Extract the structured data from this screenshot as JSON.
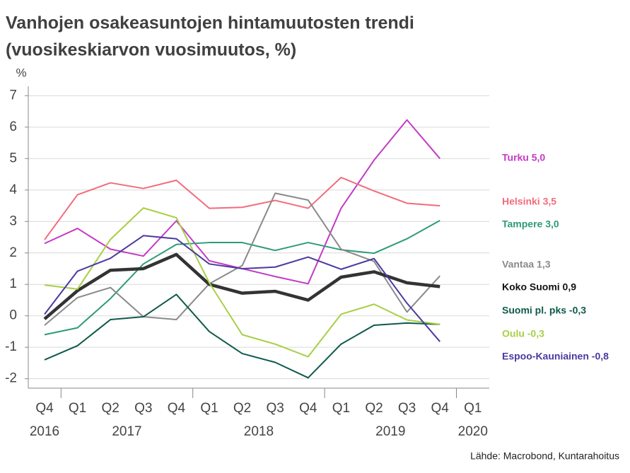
{
  "chart_data": {
    "type": "line",
    "title": "Vanhojen osakeasuntojen hintamuutosten trendi",
    "subtitle": "(vuosikeskiarvon vuosimuutos, %)",
    "y_label": "%",
    "source": "Lähde: Macrobond, Kuntarahoitus",
    "categories": [
      "Q4",
      "Q1",
      "Q2",
      "Q3",
      "Q4",
      "Q1",
      "Q2",
      "Q3",
      "Q4",
      "Q1",
      "Q2",
      "Q3",
      "Q4",
      "Q1"
    ],
    "year_groups": [
      {
        "label": "2016",
        "start": 0,
        "end": 0
      },
      {
        "label": "2017",
        "start": 1,
        "end": 4
      },
      {
        "label": "2018",
        "start": 5,
        "end": 8
      },
      {
        "label": "2019",
        "start": 9,
        "end": 12
      },
      {
        "label": "2020",
        "start": 13,
        "end": 13
      }
    ],
    "ylim": [
      -2.3,
      7.3
    ],
    "yticks": [
      -2,
      -1,
      0,
      1,
      2,
      3,
      4,
      5,
      6,
      7
    ],
    "grid": true,
    "series": [
      {
        "name": "Turku 5,0",
        "color": "#c23bc4",
        "values": [
          2.3,
          2.78,
          2.12,
          1.9,
          3.02,
          1.75,
          1.5,
          1.25,
          1.02,
          3.42,
          4.95,
          6.23,
          5.0,
          null
        ]
      },
      {
        "name": "Helsinki 3,5",
        "color": "#f26b7c",
        "values": [
          2.42,
          3.85,
          4.23,
          4.05,
          4.31,
          3.42,
          3.45,
          3.67,
          3.42,
          4.4,
          3.97,
          3.58,
          3.5,
          null
        ]
      },
      {
        "name": "Tampere 3,0",
        "color": "#2e9a7a",
        "values": [
          -0.6,
          -0.38,
          0.55,
          1.65,
          2.27,
          2.33,
          2.33,
          2.08,
          2.33,
          2.1,
          1.99,
          2.45,
          3.03,
          null
        ]
      },
      {
        "name": "Vantaa 1,3",
        "color": "#8a8a8a",
        "values": [
          -0.3,
          0.58,
          0.9,
          -0.03,
          -0.12,
          1.02,
          1.6,
          3.9,
          3.68,
          2.12,
          1.73,
          0.12,
          1.27,
          null
        ]
      },
      {
        "name": "Koko Suomi 0,9",
        "color": "#333333",
        "values": [
          -0.1,
          0.8,
          1.45,
          1.5,
          1.95,
          1.0,
          0.72,
          0.78,
          0.5,
          1.23,
          1.4,
          1.05,
          0.93,
          null
        ]
      },
      {
        "name": "Suomi pl. pks -0,3",
        "color": "#0e5a4a",
        "values": [
          -1.4,
          -0.95,
          -0.12,
          -0.03,
          0.68,
          -0.5,
          -1.2,
          -1.48,
          -1.97,
          -0.9,
          -0.3,
          -0.23,
          -0.27,
          null
        ]
      },
      {
        "name": "Oulu -0,3",
        "color": "#a8cf45",
        "values": [
          0.98,
          0.85,
          2.43,
          3.43,
          3.12,
          1.05,
          -0.6,
          -0.9,
          -1.3,
          0.05,
          0.37,
          -0.13,
          -0.27,
          null
        ]
      },
      {
        "name": "Espoo-Kauniainen -0,8",
        "color": "#4a3aa0",
        "values": [
          0.05,
          1.42,
          1.83,
          2.55,
          2.45,
          1.65,
          1.5,
          1.55,
          1.87,
          1.48,
          1.82,
          0.4,
          -0.82,
          null
        ]
      }
    ]
  }
}
